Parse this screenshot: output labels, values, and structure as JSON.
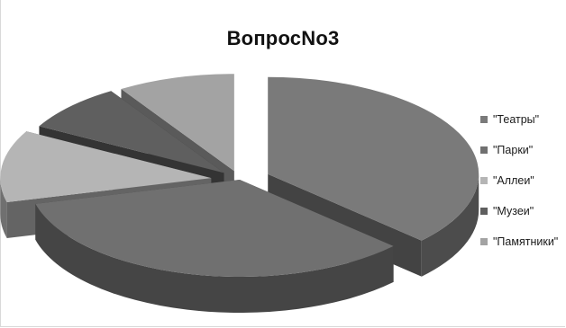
{
  "chart_data": {
    "type": "pie",
    "title": "ВопросNo3",
    "categories": [
      "\"Театры\"",
      "\"Парки\"",
      "\"Аллеи\"",
      "\"Музеи\"",
      "\"Памятники\""
    ],
    "values": [
      37,
      34,
      12,
      8,
      9
    ],
    "colors": [
      "#7a7a7a",
      "#707070",
      "#b5b5b5",
      "#5f5f5f",
      "#a3a3a3"
    ],
    "legend_position": "right",
    "style": "3d-exploded"
  }
}
